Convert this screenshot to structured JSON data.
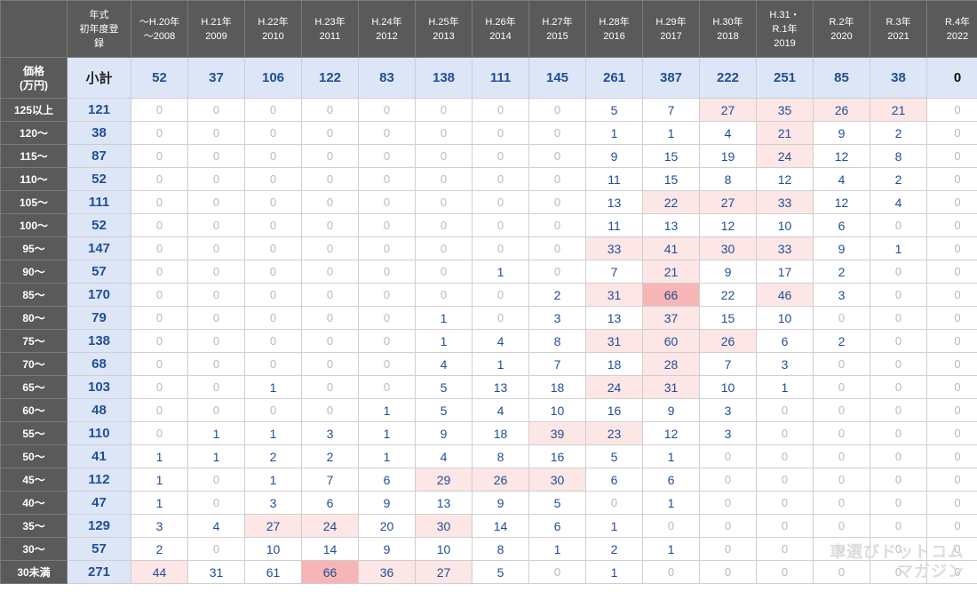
{
  "header": {
    "corner_lines": [
      "年式",
      "初年度登",
      "録"
    ],
    "price_label_lines": [
      "価格",
      "(万円)"
    ],
    "subtotal_label": "小計",
    "columns": [
      {
        "line1": "～H.20年",
        "line2": "～2008"
      },
      {
        "line1": "H.21年",
        "line2": "2009"
      },
      {
        "line1": "H.22年",
        "line2": "2010"
      },
      {
        "line1": "H.23年",
        "line2": "2011"
      },
      {
        "line1": "H.24年",
        "line2": "2012"
      },
      {
        "line1": "H.25年",
        "line2": "2013"
      },
      {
        "line1": "H.26年",
        "line2": "2014"
      },
      {
        "line1": "H.27年",
        "line2": "2015"
      },
      {
        "line1": "H.28年",
        "line2": "2016"
      },
      {
        "line1": "H.29年",
        "line2": "2017"
      },
      {
        "line1": "H.30年",
        "line2": "2018"
      },
      {
        "line1": "H.31・",
        "line2": "R.1年",
        "line3": "2019"
      },
      {
        "line1": "R.2年",
        "line2": "2020"
      },
      {
        "line1": "R.3年",
        "line2": "2021"
      },
      {
        "line1": "R.4年",
        "line2": "2022"
      }
    ]
  },
  "subtotals": [
    "52",
    "37",
    "106",
    "122",
    "83",
    "138",
    "111",
    "145",
    "261",
    "387",
    "222",
    "251",
    "85",
    "38",
    "0"
  ],
  "rows": [
    {
      "label": "125以上",
      "total": "121",
      "values": [
        "0",
        "0",
        "0",
        "0",
        "0",
        "0",
        "0",
        "0",
        "5",
        "7",
        "27",
        "35",
        "26",
        "21",
        "0"
      ]
    },
    {
      "label": "120～",
      "total": "38",
      "values": [
        "0",
        "0",
        "0",
        "0",
        "0",
        "0",
        "0",
        "0",
        "1",
        "1",
        "4",
        "21",
        "9",
        "2",
        "0"
      ]
    },
    {
      "label": "115～",
      "total": "87",
      "values": [
        "0",
        "0",
        "0",
        "0",
        "0",
        "0",
        "0",
        "0",
        "9",
        "15",
        "19",
        "24",
        "12",
        "8",
        "0"
      ]
    },
    {
      "label": "110～",
      "total": "52",
      "values": [
        "0",
        "0",
        "0",
        "0",
        "0",
        "0",
        "0",
        "0",
        "11",
        "15",
        "8",
        "12",
        "4",
        "2",
        "0"
      ]
    },
    {
      "label": "105～",
      "total": "111",
      "values": [
        "0",
        "0",
        "0",
        "0",
        "0",
        "0",
        "0",
        "0",
        "13",
        "22",
        "27",
        "33",
        "12",
        "4",
        "0"
      ]
    },
    {
      "label": "100～",
      "total": "52",
      "values": [
        "0",
        "0",
        "0",
        "0",
        "0",
        "0",
        "0",
        "0",
        "11",
        "13",
        "12",
        "10",
        "6",
        "0",
        "0"
      ]
    },
    {
      "label": "95～",
      "total": "147",
      "values": [
        "0",
        "0",
        "0",
        "0",
        "0",
        "0",
        "0",
        "0",
        "33",
        "41",
        "30",
        "33",
        "9",
        "1",
        "0"
      ]
    },
    {
      "label": "90～",
      "total": "57",
      "values": [
        "0",
        "0",
        "0",
        "0",
        "0",
        "0",
        "1",
        "0",
        "7",
        "21",
        "9",
        "17",
        "2",
        "0",
        "0"
      ]
    },
    {
      "label": "85～",
      "total": "170",
      "values": [
        "0",
        "0",
        "0",
        "0",
        "0",
        "0",
        "0",
        "2",
        "31",
        "66",
        "22",
        "46",
        "3",
        "0",
        "0"
      ]
    },
    {
      "label": "80～",
      "total": "79",
      "values": [
        "0",
        "0",
        "0",
        "0",
        "0",
        "1",
        "0",
        "3",
        "13",
        "37",
        "15",
        "10",
        "0",
        "0",
        "0"
      ]
    },
    {
      "label": "75～",
      "total": "138",
      "values": [
        "0",
        "0",
        "0",
        "0",
        "0",
        "1",
        "4",
        "8",
        "31",
        "60",
        "26",
        "6",
        "2",
        "0",
        "0"
      ]
    },
    {
      "label": "70～",
      "total": "68",
      "values": [
        "0",
        "0",
        "0",
        "0",
        "0",
        "4",
        "1",
        "7",
        "18",
        "28",
        "7",
        "3",
        "0",
        "0",
        "0"
      ]
    },
    {
      "label": "65～",
      "total": "103",
      "values": [
        "0",
        "0",
        "1",
        "0",
        "0",
        "5",
        "13",
        "18",
        "24",
        "31",
        "10",
        "1",
        "0",
        "0",
        "0"
      ]
    },
    {
      "label": "60～",
      "total": "48",
      "values": [
        "0",
        "0",
        "0",
        "0",
        "1",
        "5",
        "4",
        "10",
        "16",
        "9",
        "3",
        "0",
        "0",
        "0",
        "0"
      ]
    },
    {
      "label": "55～",
      "total": "110",
      "values": [
        "0",
        "1",
        "1",
        "3",
        "1",
        "9",
        "18",
        "39",
        "23",
        "12",
        "3",
        "0",
        "0",
        "0",
        "0"
      ]
    },
    {
      "label": "50～",
      "total": "41",
      "values": [
        "1",
        "1",
        "2",
        "2",
        "1",
        "4",
        "8",
        "16",
        "5",
        "1",
        "0",
        "0",
        "0",
        "0",
        "0"
      ]
    },
    {
      "label": "45～",
      "total": "112",
      "values": [
        "1",
        "0",
        "1",
        "7",
        "6",
        "29",
        "26",
        "30",
        "6",
        "6",
        "0",
        "0",
        "0",
        "0",
        "0"
      ]
    },
    {
      "label": "40～",
      "total": "47",
      "values": [
        "1",
        "0",
        "3",
        "6",
        "9",
        "13",
        "9",
        "5",
        "0",
        "1",
        "0",
        "0",
        "0",
        "0",
        "0"
      ]
    },
    {
      "label": "35～",
      "total": "129",
      "values": [
        "3",
        "4",
        "27",
        "24",
        "20",
        "30",
        "14",
        "6",
        "1",
        "0",
        "0",
        "0",
        "0",
        "0",
        "0"
      ]
    },
    {
      "label": "30～",
      "total": "57",
      "values": [
        "2",
        "0",
        "10",
        "14",
        "9",
        "10",
        "8",
        "1",
        "2",
        "1",
        "0",
        "0",
        "0",
        "0",
        "0"
      ]
    },
    {
      "label": "30未満",
      "total": "271",
      "values": [
        "44",
        "31",
        "61",
        "66",
        "36",
        "27",
        "5",
        "0",
        "1",
        "0",
        "0",
        "0",
        "0",
        "0",
        "0"
      ]
    }
  ],
  "highlight_light": [
    [
      0,
      10
    ],
    [
      0,
      11
    ],
    [
      0,
      12
    ],
    [
      0,
      13
    ],
    [
      1,
      11
    ],
    [
      2,
      11
    ],
    [
      4,
      9
    ],
    [
      4,
      10
    ],
    [
      4,
      11
    ],
    [
      6,
      8
    ],
    [
      6,
      9
    ],
    [
      6,
      10
    ],
    [
      6,
      11
    ],
    [
      7,
      9
    ],
    [
      8,
      8
    ],
    [
      8,
      11
    ],
    [
      9,
      9
    ],
    [
      10,
      8
    ],
    [
      10,
      9
    ],
    [
      10,
      10
    ],
    [
      11,
      9
    ],
    [
      12,
      8
    ],
    [
      12,
      9
    ],
    [
      14,
      7
    ],
    [
      14,
      8
    ],
    [
      16,
      5
    ],
    [
      16,
      6
    ],
    [
      16,
      7
    ],
    [
      18,
      2
    ],
    [
      18,
      3
    ],
    [
      18,
      5
    ],
    [
      20,
      0
    ],
    [
      20,
      4
    ],
    [
      20,
      5
    ]
  ],
  "highlight_strong": [
    [
      8,
      9
    ],
    [
      20,
      3
    ]
  ],
  "colors": {
    "header_bg": "#5a5a5a",
    "subtotal_bg": "#dde6f6",
    "value_text": "#1f4f96",
    "zero_text": "#b9b9b9",
    "highlight_light": "#fce6e6",
    "highlight_strong": "#f7b5b5"
  },
  "watermark": {
    "line1": "車選びドットコム",
    "line2": "マガジン"
  }
}
